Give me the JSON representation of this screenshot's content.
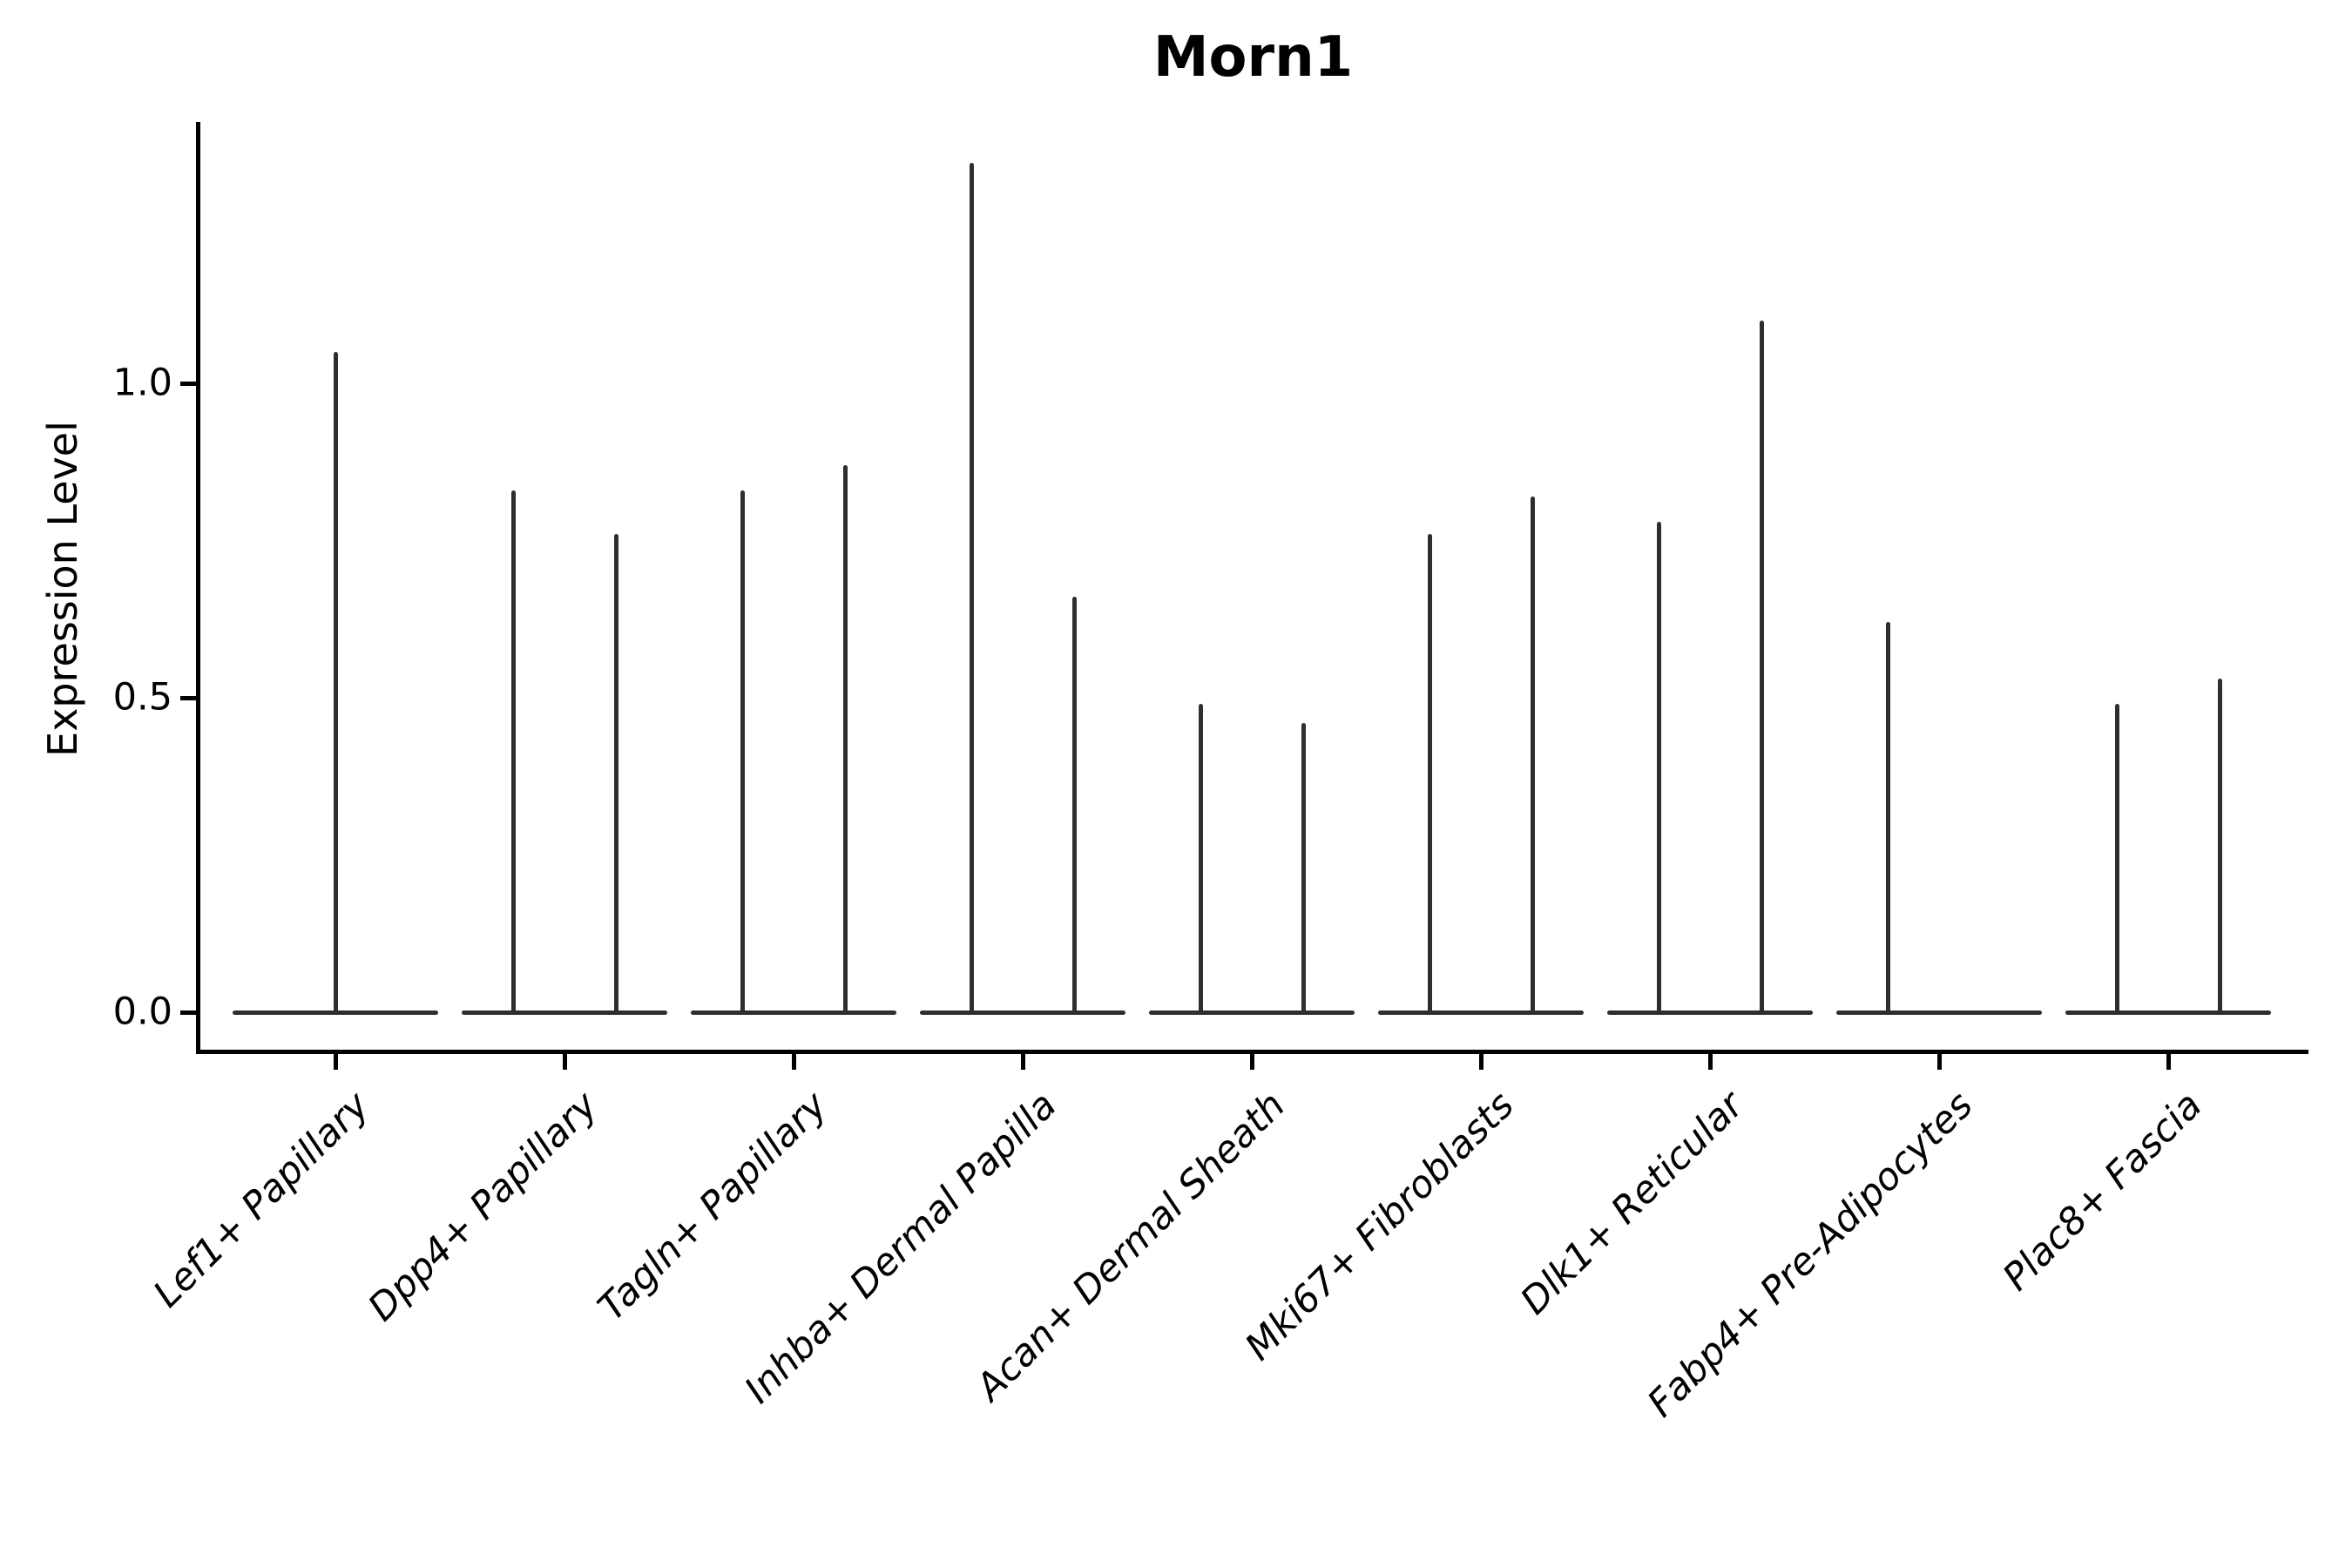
{
  "title": "Morn1",
  "colors": {
    "background": "#ffffff",
    "spine": "#000000",
    "violin_line": "#2e2e2e",
    "text": "#000000"
  },
  "chart_data": {
    "type": "violin",
    "title": "Morn1",
    "xlabel": "",
    "ylabel": "Expression Level",
    "ytick_labels": [
      "0.0",
      "0.5",
      "1.0"
    ],
    "ytick_values": [
      0.0,
      0.5,
      1.0
    ],
    "ylim": [
      -0.07,
      1.41
    ],
    "grid": false,
    "legend": null,
    "categories": [
      "Lef1+ Papillary",
      "Dpp4+ Papillary",
      "Tagln+ Papillary",
      "Inhba+ Dermal Papilla",
      "Acan+ Dermal Sheath",
      "Mki67+ Fibroblasts",
      "Dlk1+ Reticular",
      "Fabp4+ Pre-Adipocytes",
      "Plac8+ Fascia"
    ],
    "violins": [
      {
        "category": "Lef1+ Papillary",
        "spikes": [
          {
            "group": "center",
            "max": 1.05
          }
        ]
      },
      {
        "category": "Dpp4+ Papillary",
        "spikes": [
          {
            "group": "left",
            "max": 0.83
          },
          {
            "group": "right",
            "max": 0.76
          }
        ]
      },
      {
        "category": "Tagln+ Papillary",
        "spikes": [
          {
            "group": "left",
            "max": 0.83
          },
          {
            "group": "right",
            "max": 0.87
          }
        ]
      },
      {
        "category": "Inhba+ Dermal Papilla",
        "spikes": [
          {
            "group": "left",
            "max": 1.35
          },
          {
            "group": "right",
            "max": 0.66
          }
        ]
      },
      {
        "category": "Acan+ Dermal Sheath",
        "spikes": [
          {
            "group": "left",
            "max": 0.49
          },
          {
            "group": "right",
            "max": 0.46
          }
        ]
      },
      {
        "category": "Mki67+ Fibroblasts",
        "spikes": [
          {
            "group": "left",
            "max": 0.76
          },
          {
            "group": "right",
            "max": 0.82
          }
        ]
      },
      {
        "category": "Dlk1+ Reticular",
        "spikes": [
          {
            "group": "left",
            "max": 0.78
          },
          {
            "group": "right",
            "max": 1.1
          }
        ]
      },
      {
        "category": "Fabp4+ Pre-Adipocytes",
        "spikes": [
          {
            "group": "left",
            "max": 0.62
          }
        ]
      },
      {
        "category": "Plac8+ Fascia",
        "spikes": [
          {
            "group": "left",
            "max": 0.49
          },
          {
            "group": "right",
            "max": 0.53
          }
        ]
      }
    ],
    "description": "Violin plot of Morn1 expression level per fibroblast cluster; bulk of cells at 0 (flat violin baselines) with thin density spikes reaching each group's maximum."
  }
}
